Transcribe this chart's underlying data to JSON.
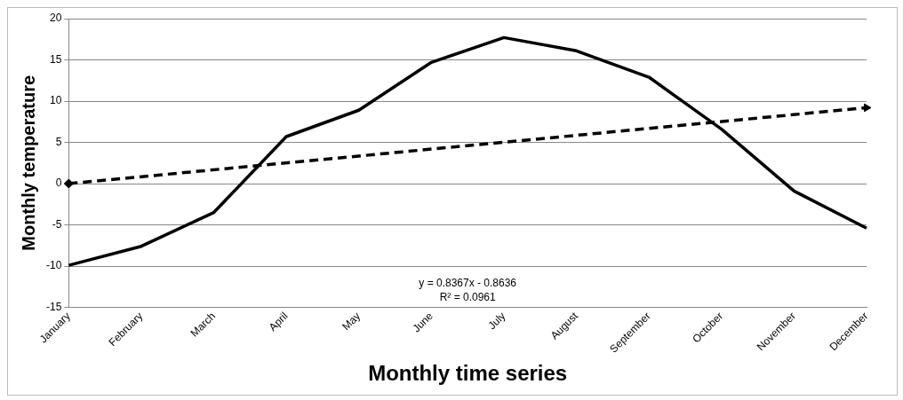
{
  "chart_data": {
    "type": "line",
    "xlabel": "Monthly time series",
    "ylabel": "Monthly temperature",
    "categories": [
      "January",
      "February",
      "March",
      "April",
      "May",
      "June",
      "July",
      "August",
      "September",
      "October",
      "November",
      "December"
    ],
    "series": [
      {
        "type": "line",
        "color": "#000000",
        "values": [
          -9.9,
          -7.6,
          -3.5,
          5.7,
          8.9,
          14.7,
          17.7,
          16.1,
          12.9,
          6.6,
          -0.9,
          -5.4
        ],
        "line_style": "solid",
        "marker": "none"
      },
      {
        "type": "line",
        "color": "#000000",
        "values": [
          0,
          null,
          null,
          null,
          null,
          null,
          null,
          null,
          null,
          null,
          null,
          9.2
        ],
        "line_style": "dashed",
        "marker": "diamond"
      }
    ],
    "ylim": [
      -15,
      20
    ],
    "yticks": [
      -15,
      -10,
      -5,
      0,
      5,
      10,
      15,
      20
    ],
    "grid": "y",
    "legend": false,
    "annotations": [
      "y = 0.8367x - 0.8636",
      "R² = 0.0961"
    ]
  }
}
